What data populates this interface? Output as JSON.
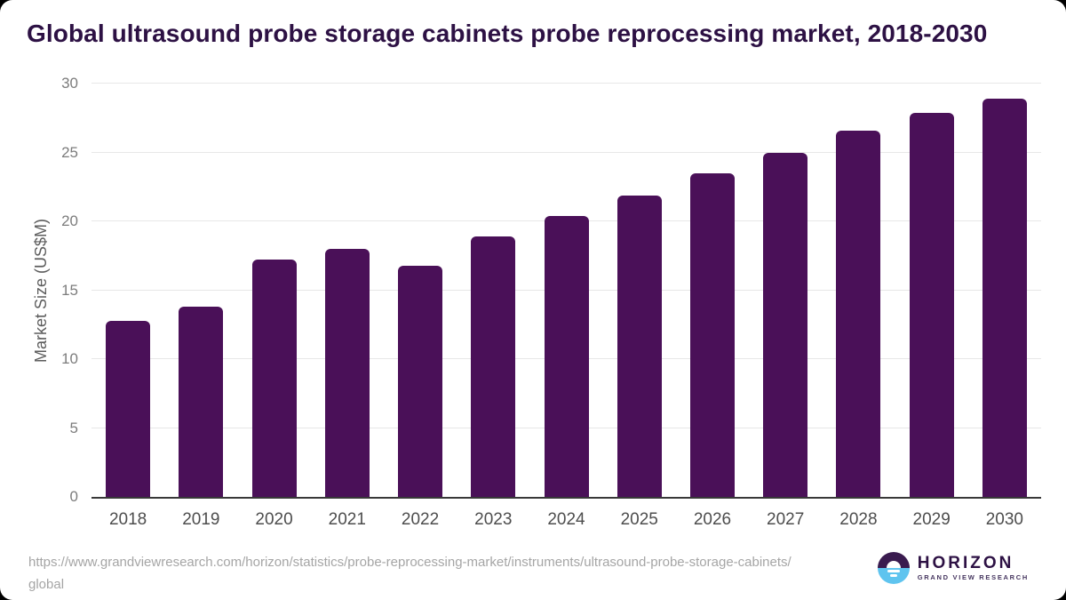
{
  "chart_data": {
    "type": "bar",
    "title": "Global ultrasound probe storage cabinets probe reprocessing market, 2018-2030",
    "categories": [
      "2018",
      "2019",
      "2020",
      "2021",
      "2022",
      "2023",
      "2024",
      "2025",
      "2026",
      "2027",
      "2028",
      "2029",
      "2030"
    ],
    "values": [
      12.8,
      13.8,
      17.2,
      18.0,
      16.8,
      18.9,
      20.4,
      21.9,
      23.5,
      25.0,
      26.6,
      27.9,
      28.9
    ],
    "xlabel": "",
    "ylabel": "Market Size (US$M)",
    "ylim": [
      0,
      30
    ],
    "yticks": [
      0,
      5,
      10,
      15,
      20,
      25,
      30
    ],
    "grid": true,
    "legend": false,
    "bar_color": "#4a1058"
  },
  "footer": {
    "source_url_line1": "https://www.grandviewresearch.com/horizon/statistics/probe-reprocessing-market/instruments/ultrasound-probe-storage-cabinets/",
    "source_url_line2": "global",
    "logo": {
      "brand": "HORIZON",
      "tagline": "GRAND VIEW RESEARCH"
    }
  },
  "colors": {
    "bar": "#4a1058",
    "title_text": "#2d1144",
    "gridline": "#e7e7e7",
    "axis_line": "#383838",
    "y_tick_text": "#7c7c7c",
    "x_tick_text": "#4d4d4d",
    "y_axis_title_text": "#5c5c5c",
    "footer_text": "#a5a5a5",
    "logo_purple": "#3a1b4f",
    "logo_blue": "#5fc4ef"
  }
}
